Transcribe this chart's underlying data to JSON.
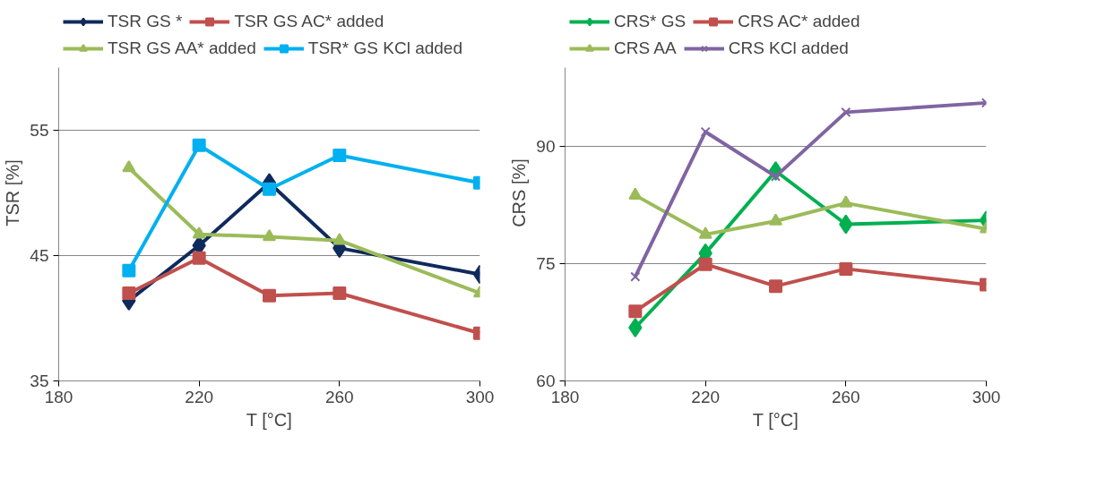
{
  "chart_data": [
    {
      "type": "line",
      "xlabel": "T [°C]",
      "ylabel": "TSR [%]",
      "x": [
        200,
        220,
        240,
        260,
        300
      ],
      "xlim": [
        180,
        300
      ],
      "xticks": [
        180,
        220,
        260,
        300
      ],
      "ylim": [
        35,
        60
      ],
      "yticks": [
        35,
        45,
        55
      ],
      "grid": "y",
      "legend": "top",
      "series": [
        {
          "name": "TSR GS *",
          "color": "#0f2a5c",
          "marker": "diamond",
          "values": [
            41.4,
            45.8,
            50.8,
            45.6,
            43.5
          ]
        },
        {
          "name": "TSR GS AC* added",
          "color": "#c0504d",
          "marker": "square",
          "values": [
            42.0,
            44.8,
            41.8,
            42.0,
            38.8
          ]
        },
        {
          "name": "TSR GS AA* added",
          "color": "#9bbb59",
          "marker": "triangle",
          "values": [
            52.0,
            46.7,
            46.5,
            46.2,
            42.0
          ]
        },
        {
          "name": "TSR* GS KCl added",
          "color": "#00b0f0",
          "marker": "square",
          "values": [
            43.8,
            53.8,
            50.3,
            53.0,
            50.8
          ]
        }
      ]
    },
    {
      "type": "line",
      "xlabel": "T [°C]",
      "ylabel": "CRS [%]",
      "x": [
        200,
        220,
        240,
        260,
        300
      ],
      "xlim": [
        180,
        300
      ],
      "xticks": [
        180,
        220,
        260,
        300
      ],
      "ylim": [
        60,
        100
      ],
      "yticks": [
        60,
        75,
        90
      ],
      "grid": "y",
      "legend": "top",
      "series": [
        {
          "name": "CRS* GS",
          "color": "#00b050",
          "marker": "diamond",
          "values": [
            66.8,
            76.3,
            86.8,
            80.0,
            80.5
          ]
        },
        {
          "name": "CRS AC* added",
          "color": "#c0504d",
          "marker": "square",
          "values": [
            68.9,
            74.9,
            72.1,
            74.3,
            72.3
          ]
        },
        {
          "name": "CRS AA",
          "color": "#9bbb59",
          "marker": "triangle",
          "values": [
            83.7,
            78.7,
            80.4,
            82.7,
            79.4
          ]
        },
        {
          "name": "CRS KCl added",
          "color": "#8064a2",
          "marker": "cross",
          "values": [
            73.3,
            91.8,
            86.1,
            94.3,
            95.5
          ]
        }
      ]
    }
  ]
}
